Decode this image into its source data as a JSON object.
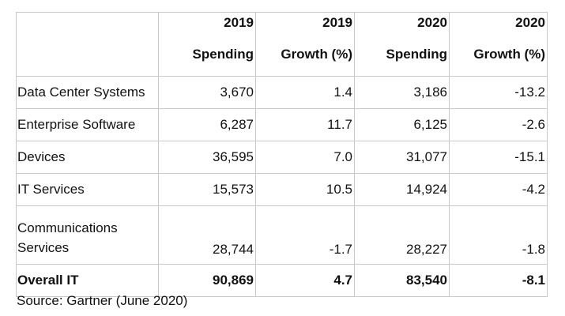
{
  "chart_data": {
    "type": "table",
    "columns": [
      {
        "year": "2019",
        "label": "Spending"
      },
      {
        "year": "2019",
        "label": "Growth (%)"
      },
      {
        "year": "2020",
        "label": "Spending"
      },
      {
        "year": "2020",
        "label": "Growth (%)"
      }
    ],
    "rows": [
      {
        "label": "Data Center Systems",
        "values": [
          "3,670",
          "1.4",
          "3,186",
          "-13.2"
        ]
      },
      {
        "label": "Enterprise Software",
        "values": [
          "6,287",
          "11.7",
          "6,125",
          "-2.6"
        ]
      },
      {
        "label": "Devices",
        "values": [
          "36,595",
          "7.0",
          "31,077",
          "-15.1"
        ]
      },
      {
        "label": "IT Services",
        "values": [
          "15,573",
          "10.5",
          "14,924",
          "-4.2"
        ]
      },
      {
        "label": "Communications Services",
        "values": [
          "28,744",
          "-1.7",
          "28,227",
          "-1.8"
        ]
      },
      {
        "label": "Overall IT",
        "values": [
          "90,869",
          "4.7",
          "83,540",
          "-8.1"
        ]
      }
    ],
    "source": "Source: Gartner (June 2020)"
  }
}
